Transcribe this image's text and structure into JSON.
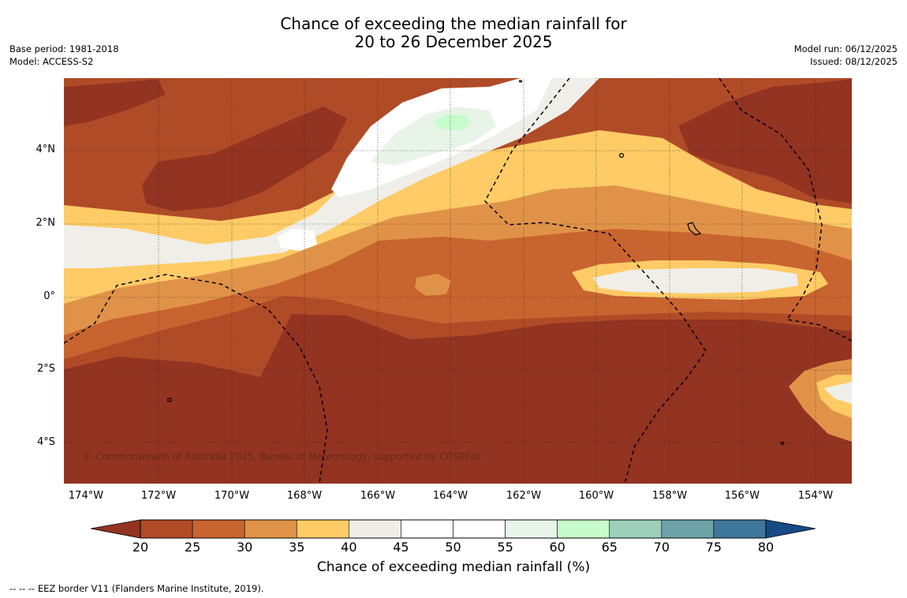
{
  "title": {
    "line1": "Chance of exceeding the median rainfall for",
    "line2": "20 to 26 December 2025"
  },
  "meta_left": {
    "base_period": "Base period: 1981-2018",
    "model": "Model: ACCESS-S2"
  },
  "meta_right": {
    "model_run": "Model run: 06/12/2025",
    "issued": "Issued: 08/12/2025"
  },
  "map": {
    "lat_labels": [
      "4°N",
      "2°N",
      "0°",
      "2°S",
      "4°S"
    ],
    "lon_labels": [
      "174°W",
      "172°W",
      "170°W",
      "168°W",
      "166°W",
      "164°W",
      "162°W",
      "160°W",
      "158°W",
      "156°W",
      "154°W"
    ],
    "copyright": "© Commonwealth of Australia 2025, Bureau of Meteorology, supported by COSPPac"
  },
  "colorbar": {
    "ticks": [
      "20",
      "25",
      "30",
      "35",
      "40",
      "45",
      "50",
      "55",
      "60",
      "65",
      "70",
      "75",
      "80"
    ],
    "colors": [
      "#b04b27",
      "#c8642f",
      "#e09348",
      "#fecb66",
      "#f0eee9",
      "#ffffff",
      "#ffffff",
      "#e8f4e8",
      "#c9fccc",
      "#9dcfbb",
      "#6da3a8",
      "#3e7799"
    ],
    "under_color": "#933321",
    "over_color": "#164b86",
    "title": "Chance of exceeding median rainfall (%)"
  },
  "eez_note": "--  --  -- EEZ border V11 (Flanders Marine Institute, 2019)."
}
